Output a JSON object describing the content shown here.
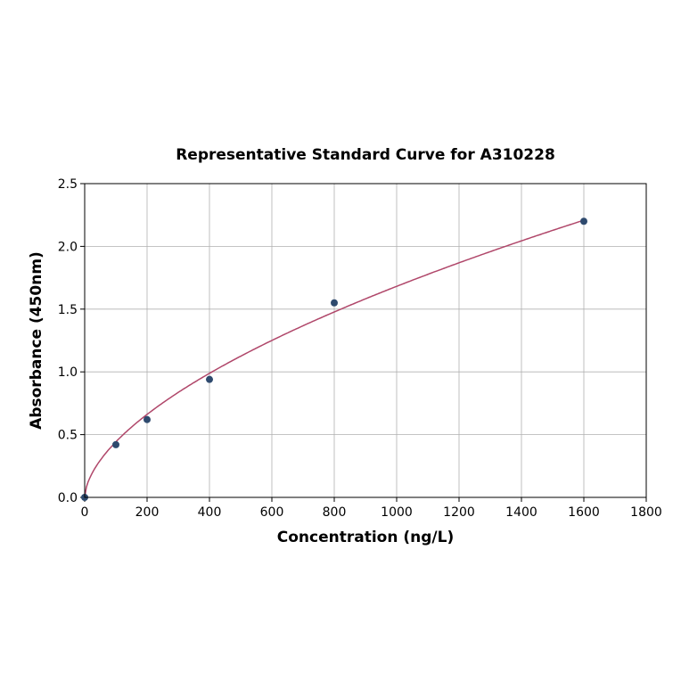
{
  "chart_data": {
    "type": "scatter",
    "title": "Representative Standard Curve for A310228",
    "xlabel": "Concentration (ng/L)",
    "ylabel": "Absorbance (450nm)",
    "xlim": [
      0,
      1800
    ],
    "ylim": [
      0,
      2.5
    ],
    "xticks": [
      0,
      200,
      400,
      600,
      800,
      1000,
      1200,
      1400,
      1600,
      1800
    ],
    "yticks": [
      "0.0",
      "0.5",
      "1.0",
      "1.5",
      "2.0",
      "2.5"
    ],
    "grid": true,
    "points": {
      "x": [
        0,
        100,
        200,
        400,
        800,
        1600
      ],
      "y": [
        0.0,
        0.42,
        0.62,
        0.94,
        1.55,
        2.2
      ]
    },
    "fit": {
      "model": "power",
      "a": 0.0306,
      "b": 0.58,
      "x_range": [
        0,
        1600
      ]
    },
    "colors": {
      "points": "#2e4a6e",
      "fit": "#b0476a"
    }
  }
}
